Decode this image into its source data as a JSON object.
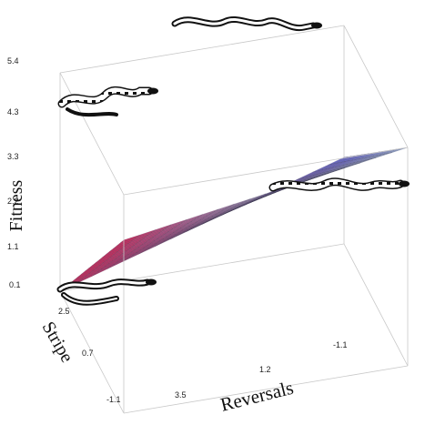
{
  "chart_data": {
    "type": "surface",
    "zlabel": "Fitness",
    "xlabel": "Reversals",
    "ylabel": "Stripe",
    "z_ticks": [
      "0.1",
      "1.1",
      "2.2",
      "3.3",
      "4.3",
      "5.4"
    ],
    "x_ticks": [
      "3.5",
      "1.2",
      "-1.1"
    ],
    "y_ticks": [
      "-1.1",
      "0.7",
      "2.5"
    ],
    "xlim": [
      -1.1,
      3.5
    ],
    "ylim": [
      -1.1,
      2.5
    ],
    "zlim": [
      0.1,
      5.4
    ],
    "corners": [
      {
        "reversals": 3.5,
        "stripe": 2.5,
        "fitness": 0.1
      },
      {
        "reversals": 3.5,
        "stripe": -1.1,
        "fitness": 4.3
      },
      {
        "reversals": -1.1,
        "stripe": -1.1,
        "fitness": 5.4
      },
      {
        "reversals": -1.1,
        "stripe": 2.5,
        "fitness": 2.2
      }
    ],
    "saddle": {
      "reversals": 1.2,
      "stripe": 0.7,
      "fitness": 3.3
    },
    "colors": {
      "low": "#c9285a",
      "mid": "#8a4f8f",
      "high": "#6b6fd6",
      "light": "#c6e6fb"
    },
    "grid": true
  },
  "snake_icons": [
    "snake-icon",
    "snake-icon",
    "snake-icon",
    "snake-icon"
  ]
}
